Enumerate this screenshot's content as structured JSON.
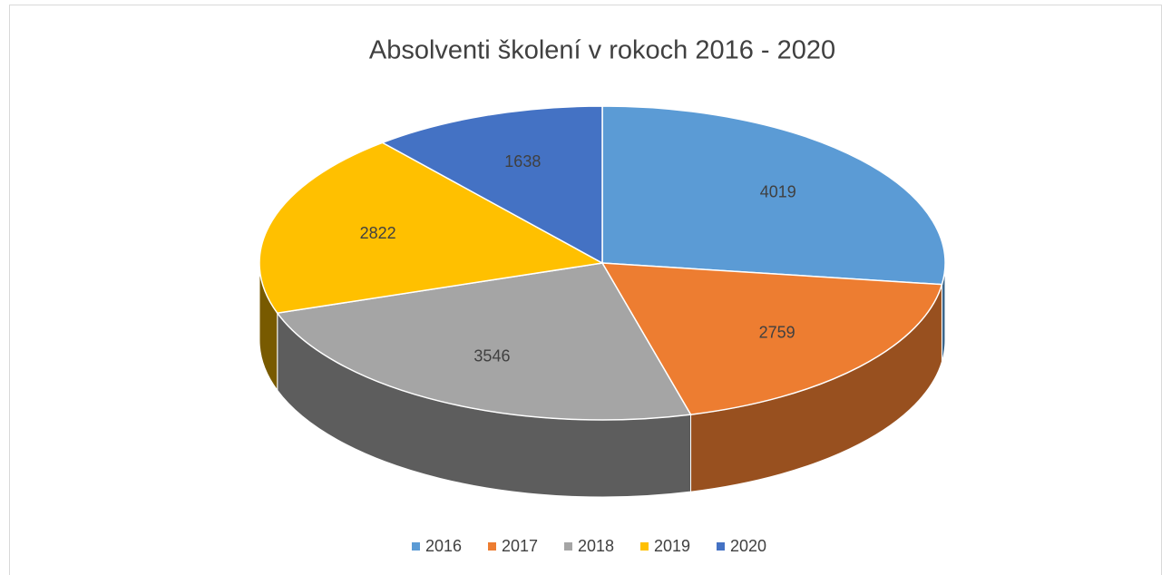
{
  "chart_data": {
    "type": "pie",
    "title": "Absolventi školení v rokoch 2016 - 2020",
    "categories": [
      "2016",
      "2017",
      "2018",
      "2019",
      "2020"
    ],
    "values": [
      4019,
      2759,
      3546,
      2822,
      1638
    ],
    "colors": [
      "#5b9bd5",
      "#ed7d31",
      "#a5a5a5",
      "#ffc000",
      "#4472c4"
    ],
    "legend": "bottom"
  }
}
